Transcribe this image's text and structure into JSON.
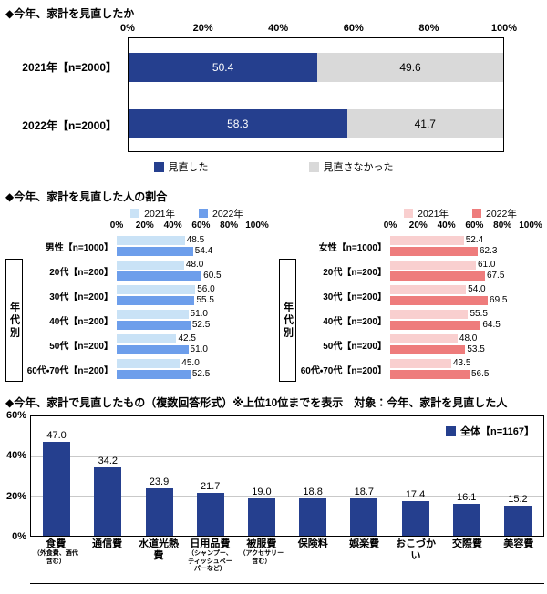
{
  "page": {
    "background": "#ffffff"
  },
  "chart_data": [
    {
      "type": "bar",
      "orientation": "horizontal-stacked",
      "title": "◆今年、家計を見直したか",
      "categories": [
        "2021年【n=2000】",
        "2022年【n=2000】"
      ],
      "series": [
        {
          "name": "見直した",
          "color": "#253f8e",
          "value_color": "#ffffff",
          "values": [
            50.4,
            58.3
          ]
        },
        {
          "name": "見直さなかった",
          "color": "#d9d9d9",
          "value_color": "#000000",
          "values": [
            49.6,
            41.7
          ]
        }
      ],
      "xlim": [
        0,
        100
      ],
      "ticks": [
        "0%",
        "20%",
        "40%",
        "60%",
        "80%",
        "100%"
      ]
    },
    {
      "type": "bar",
      "orientation": "horizontal-grouped",
      "title": "◆今年、家計を見直した人の割合",
      "xlim": [
        0,
        100
      ],
      "ticks": [
        "0%",
        "20%",
        "40%",
        "60%",
        "80%",
        "100%"
      ],
      "panels": [
        {
          "id": "male",
          "group_label": "年代別",
          "categories": [
            "男性【n=1000】",
            "20代【n=200】",
            "30代【n=200】",
            "40代【n=200】",
            "50代【n=200】",
            "60代・70代【n=200】"
          ],
          "series": [
            {
              "name": "2021年",
              "color": "#c9e2f6",
              "values": [
                48.5,
                48.0,
                56.0,
                51.0,
                42.5,
                45.0
              ]
            },
            {
              "name": "2022年",
              "color": "#6d9eeb",
              "values": [
                54.4,
                60.5,
                55.5,
                52.5,
                51.0,
                52.5
              ]
            }
          ]
        },
        {
          "id": "female",
          "group_label": "年代別",
          "categories": [
            "女性【n=1000】",
            "20代【n=200】",
            "30代【n=200】",
            "40代【n=200】",
            "50代【n=200】",
            "60代・70代【n=200】"
          ],
          "series": [
            {
              "name": "2021年",
              "color": "#f9cfcf",
              "values": [
                52.4,
                61.0,
                54.0,
                55.5,
                48.0,
                43.5
              ]
            },
            {
              "name": "2022年",
              "color": "#ee7c7c",
              "values": [
                62.3,
                67.5,
                69.5,
                64.5,
                53.5,
                56.5
              ]
            }
          ]
        }
      ]
    },
    {
      "type": "bar",
      "orientation": "vertical",
      "title": "◆今年、家計で見直したもの（複数回答形式）※上位10位までを表示　対象：今年、家計を見直した人",
      "legend": {
        "label": "全体【n=1167】",
        "color": "#253f8e"
      },
      "bar_color": "#253f8e",
      "categories": [
        {
          "label": "食費",
          "note": "（外食費、酒代含む）"
        },
        {
          "label": "通信費",
          "note": ""
        },
        {
          "label": "水道光熱費",
          "note": ""
        },
        {
          "label": "日用品費",
          "note": "（シャンプー、ティッシュペーパーなど）"
        },
        {
          "label": "被服費",
          "note": "（アクセサリー含む）"
        },
        {
          "label": "保険料",
          "note": ""
        },
        {
          "label": "娯楽費",
          "note": ""
        },
        {
          "label": "おこづかい",
          "note": ""
        },
        {
          "label": "交際費",
          "note": ""
        },
        {
          "label": "美容費",
          "note": ""
        }
      ],
      "values": [
        47.0,
        34.2,
        23.9,
        21.7,
        19.0,
        18.8,
        18.7,
        17.4,
        16.1,
        15.2
      ],
      "ylim": [
        0,
        60
      ],
      "yticks": [
        "0%",
        "20%",
        "40%",
        "60%"
      ]
    }
  ]
}
